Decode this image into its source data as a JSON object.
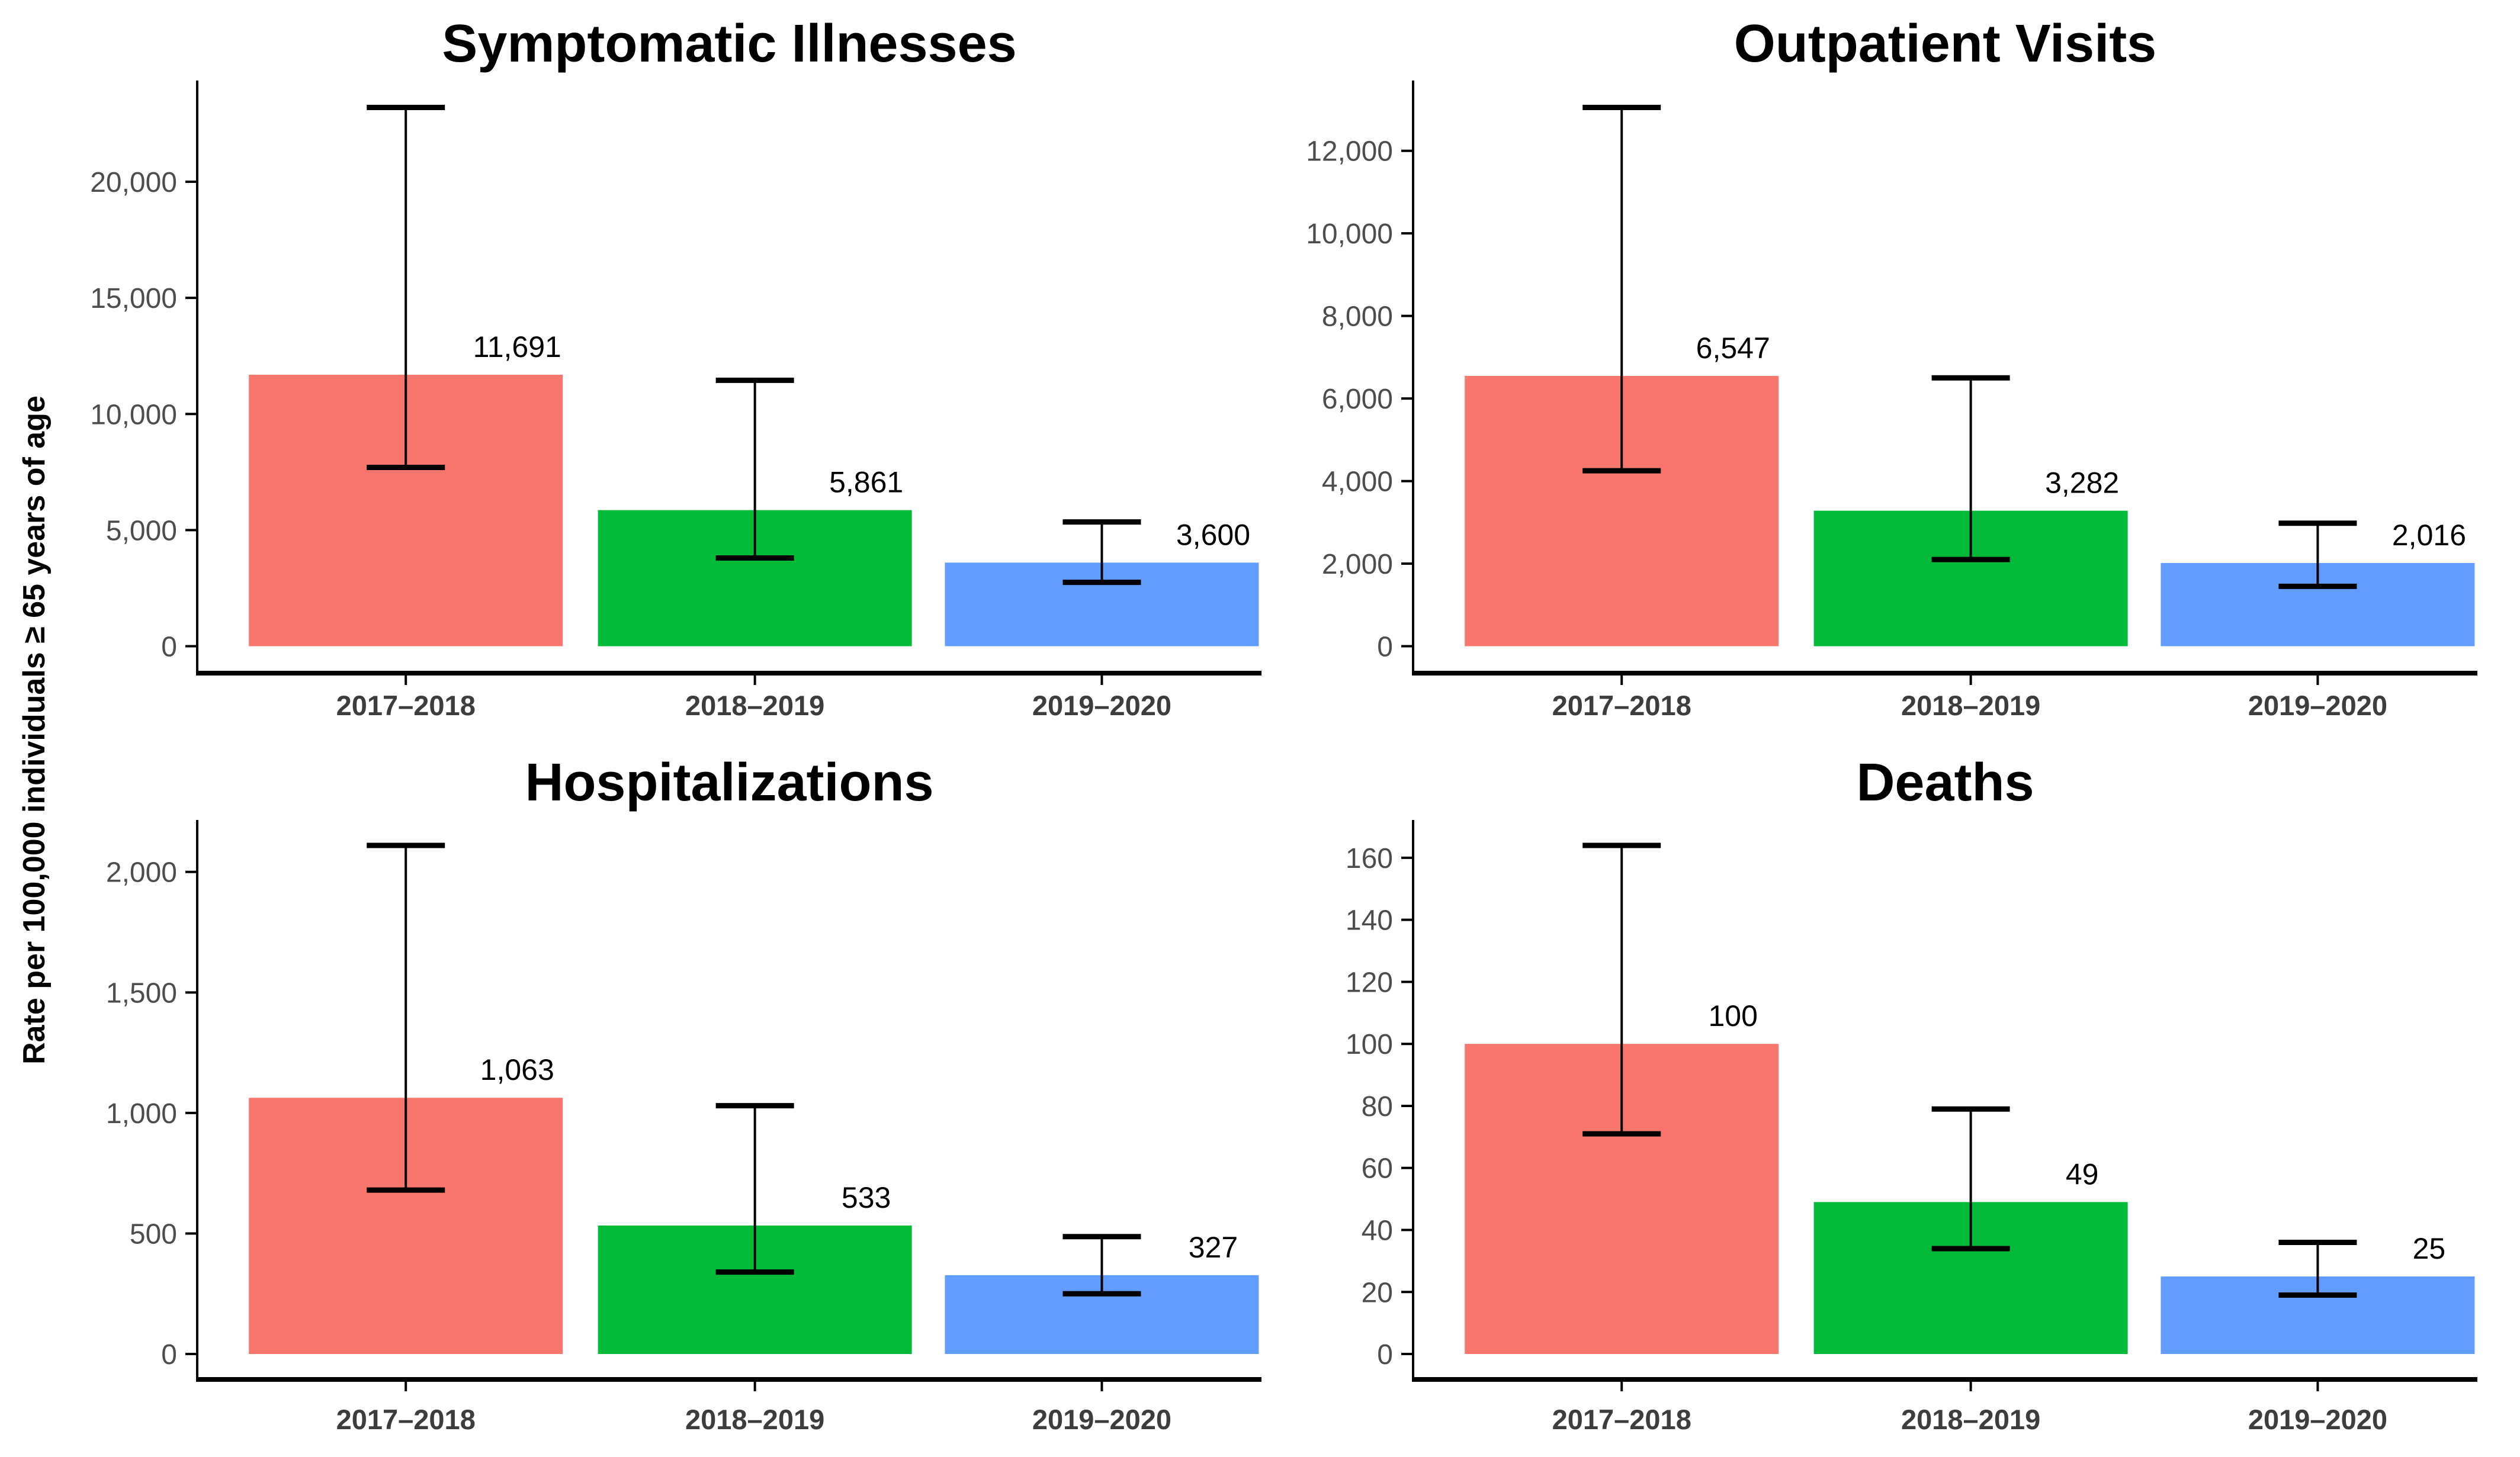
{
  "figure": {
    "y_axis_label": "Rate per 100,000 individuals ≥ 65 years of age",
    "colors": {
      "bar_2017_2018": "#F8766D",
      "bar_2018_2019": "#00BA38",
      "bar_2019_2020": "#619CFF",
      "error_bar": "#000000",
      "axis_line": "#000000",
      "y_tick_label": "#4D4D4D",
      "x_tick_label": "#3D3D3D",
      "title": "#000000",
      "value_label": "#000000",
      "background": "#FFFFFF"
    }
  },
  "chart_data": [
    {
      "type": "bar",
      "title": "Symptomatic Illnesses",
      "categories": [
        "2017–2018",
        "2018–2019",
        "2019–2020"
      ],
      "values": [
        11691,
        5861,
        3600
      ],
      "value_labels": [
        "11,691",
        "5,861",
        "3,600"
      ],
      "error_bars": {
        "lower": [
          7700,
          3800,
          2750
        ],
        "upper": [
          23200,
          11450,
          5350
        ]
      },
      "yticks": [
        0,
        5000,
        10000,
        15000,
        20000
      ],
      "ytick_labels": [
        "0",
        "5,000",
        "10,000",
        "15,000",
        "20,000"
      ],
      "ylim": [
        -1160,
        24360
      ],
      "xlabel": "",
      "ylabel": "",
      "grid": false,
      "legend": false
    },
    {
      "type": "bar",
      "title": "Outpatient Visits",
      "categories": [
        "2017–2018",
        "2018–2019",
        "2019–2020"
      ],
      "values": [
        6547,
        3282,
        2016
      ],
      "value_labels": [
        "6,547",
        "3,282",
        "2,016"
      ],
      "error_bars": {
        "lower": [
          4250,
          2100,
          1450
        ],
        "upper": [
          13050,
          6500,
          2980
        ]
      },
      "yticks": [
        0,
        2000,
        4000,
        6000,
        8000,
        10000,
        12000
      ],
      "ytick_labels": [
        "0",
        "2,000",
        "4,000",
        "6,000",
        "8,000",
        "10,000",
        "12,000"
      ],
      "ylim": [
        -652.5,
        13702.5
      ],
      "xlabel": "",
      "ylabel": "",
      "grid": false,
      "legend": false
    },
    {
      "type": "bar",
      "title": "Hospitalizations",
      "categories": [
        "2017–2018",
        "2018–2019",
        "2019–2020"
      ],
      "values": [
        1063,
        533,
        327
      ],
      "value_labels": [
        "1,063",
        "533",
        "327"
      ],
      "error_bars": {
        "lower": [
          680,
          340,
          250
        ],
        "upper": [
          2110,
          1030,
          487
        ]
      },
      "yticks": [
        0,
        500,
        1000,
        1500,
        2000
      ],
      "ytick_labels": [
        "0",
        "500",
        "1,000",
        "1,500",
        "2,000"
      ],
      "ylim": [
        -105.5,
        2215.5
      ],
      "xlabel": "",
      "ylabel": "",
      "grid": false,
      "legend": false
    },
    {
      "type": "bar",
      "title": "Deaths",
      "categories": [
        "2017–2018",
        "2018–2019",
        "2019–2020"
      ],
      "values": [
        100,
        49,
        25
      ],
      "value_labels": [
        "100",
        "49",
        "25"
      ],
      "error_bars": {
        "lower": [
          71,
          34,
          19
        ],
        "upper": [
          164,
          79,
          36
        ]
      },
      "yticks": [
        0,
        20,
        40,
        60,
        80,
        100,
        120,
        140,
        160
      ],
      "ytick_labels": [
        "0",
        "20",
        "40",
        "60",
        "80",
        "100",
        "120",
        "140",
        "160"
      ],
      "ylim": [
        -8.2,
        172.2
      ],
      "xlabel": "",
      "ylabel": "",
      "grid": false,
      "legend": false
    }
  ]
}
